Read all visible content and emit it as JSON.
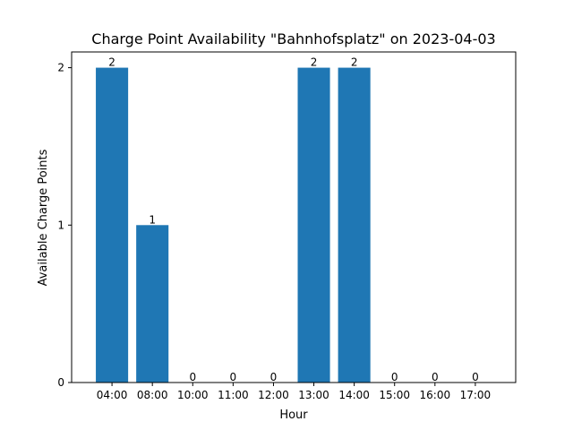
{
  "chart_data": {
    "type": "bar",
    "title": "Charge Point Availability \"Bahnhofsplatz\" on 2023-04-03",
    "xlabel": "Hour",
    "ylabel": "Available Charge Points",
    "categories": [
      "04:00",
      "08:00",
      "10:00",
      "11:00",
      "12:00",
      "13:00",
      "14:00",
      "15:00",
      "16:00",
      "17:00"
    ],
    "values": [
      2,
      1,
      0,
      0,
      0,
      2,
      2,
      0,
      0,
      0
    ],
    "ylim": [
      0,
      2.1
    ],
    "yticks": [
      0,
      1,
      2
    ],
    "bar_color": "#1f77b4",
    "grid": false,
    "legend": "none"
  }
}
